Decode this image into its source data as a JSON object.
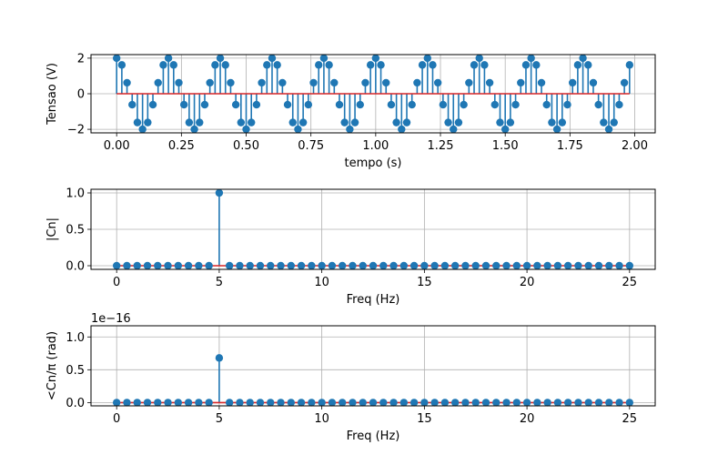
{
  "chart_data": [
    {
      "type": "stem",
      "xlabel": "tempo (s)",
      "ylabel": "Tensao (V)",
      "xlim": [
        -0.099,
        2.079
      ],
      "ylim": [
        -2.2,
        2.2
      ],
      "xticks": [
        "0.00",
        "0.25",
        "0.50",
        "0.75",
        "1.00",
        "1.25",
        "1.50",
        "1.75",
        "2.00"
      ],
      "yticks": [
        "−2",
        "0",
        "2"
      ],
      "grid": true,
      "signal": {
        "amplitude": 2,
        "frequency_hz": 5,
        "sample_step_s": 0.02,
        "t_start": 0,
        "t_end": 1.98
      },
      "stem_color": "#1f77b4",
      "baseline_color": "#d62728"
    },
    {
      "type": "stem",
      "xlabel": "Freq (Hz)",
      "ylabel": "|Cn|",
      "xlim": [
        -1.25,
        26.25
      ],
      "ylim": [
        -0.05,
        1.05
      ],
      "xticks": [
        "0",
        "5",
        "10",
        "15",
        "20",
        "25"
      ],
      "yticks": [
        "0.0",
        "0.5",
        "1.0"
      ],
      "grid": true,
      "x": [
        0,
        0.5,
        1,
        1.5,
        2,
        2.5,
        3,
        3.5,
        4,
        4.5,
        5,
        5.5,
        6,
        6.5,
        7,
        7.5,
        8,
        8.5,
        9,
        9.5,
        10,
        10.5,
        11,
        11.5,
        12,
        12.5,
        13,
        13.5,
        14,
        14.5,
        15,
        15.5,
        16,
        16.5,
        17,
        17.5,
        18,
        18.5,
        19,
        19.5,
        20,
        20.5,
        21,
        21.5,
        22,
        22.5,
        23,
        23.5,
        24,
        24.5,
        25
      ],
      "values": [
        0,
        0,
        0,
        0,
        0,
        0,
        0,
        0,
        0,
        0,
        1,
        0,
        0,
        0,
        0,
        0,
        0,
        0,
        0,
        0,
        0,
        0,
        0,
        0,
        0,
        0,
        0,
        0,
        0,
        0,
        0,
        0,
        0,
        0,
        0,
        0,
        0,
        0,
        0,
        0,
        0,
        0,
        0,
        0,
        0,
        0,
        0,
        0,
        0,
        0,
        0
      ]
    },
    {
      "type": "stem",
      "xlabel": "Freq (Hz)",
      "ylabel": "<Cn/π (rad)",
      "offset_text": "1e−16",
      "xlim": [
        -1.25,
        26.25
      ],
      "ylim": [
        -0.05,
        1.17
      ],
      "xticks": [
        "0",
        "5",
        "10",
        "15",
        "20",
        "25"
      ],
      "yticks": [
        "0.0",
        "0.5",
        "1.0"
      ],
      "grid": true,
      "x": [
        0,
        0.5,
        1,
        1.5,
        2,
        2.5,
        3,
        3.5,
        4,
        4.5,
        5,
        5.5,
        6,
        6.5,
        7,
        7.5,
        8,
        8.5,
        9,
        9.5,
        10,
        10.5,
        11,
        11.5,
        12,
        12.5,
        13,
        13.5,
        14,
        14.5,
        15,
        15.5,
        16,
        16.5,
        17,
        17.5,
        18,
        18.5,
        19,
        19.5,
        20,
        20.5,
        21,
        21.5,
        22,
        22.5,
        23,
        23.5,
        24,
        24.5,
        25
      ],
      "values": [
        0,
        0,
        0,
        0,
        0,
        0,
        0,
        0,
        0,
        0,
        0.68,
        0,
        0,
        0,
        0,
        0,
        0,
        0,
        0,
        0,
        0,
        0,
        0,
        0,
        0,
        0,
        0,
        0,
        0,
        0,
        0,
        0,
        0,
        0,
        0,
        0,
        0,
        0,
        0,
        0,
        0,
        0,
        0,
        0,
        0,
        0,
        0,
        0,
        0,
        0,
        0
      ]
    }
  ]
}
